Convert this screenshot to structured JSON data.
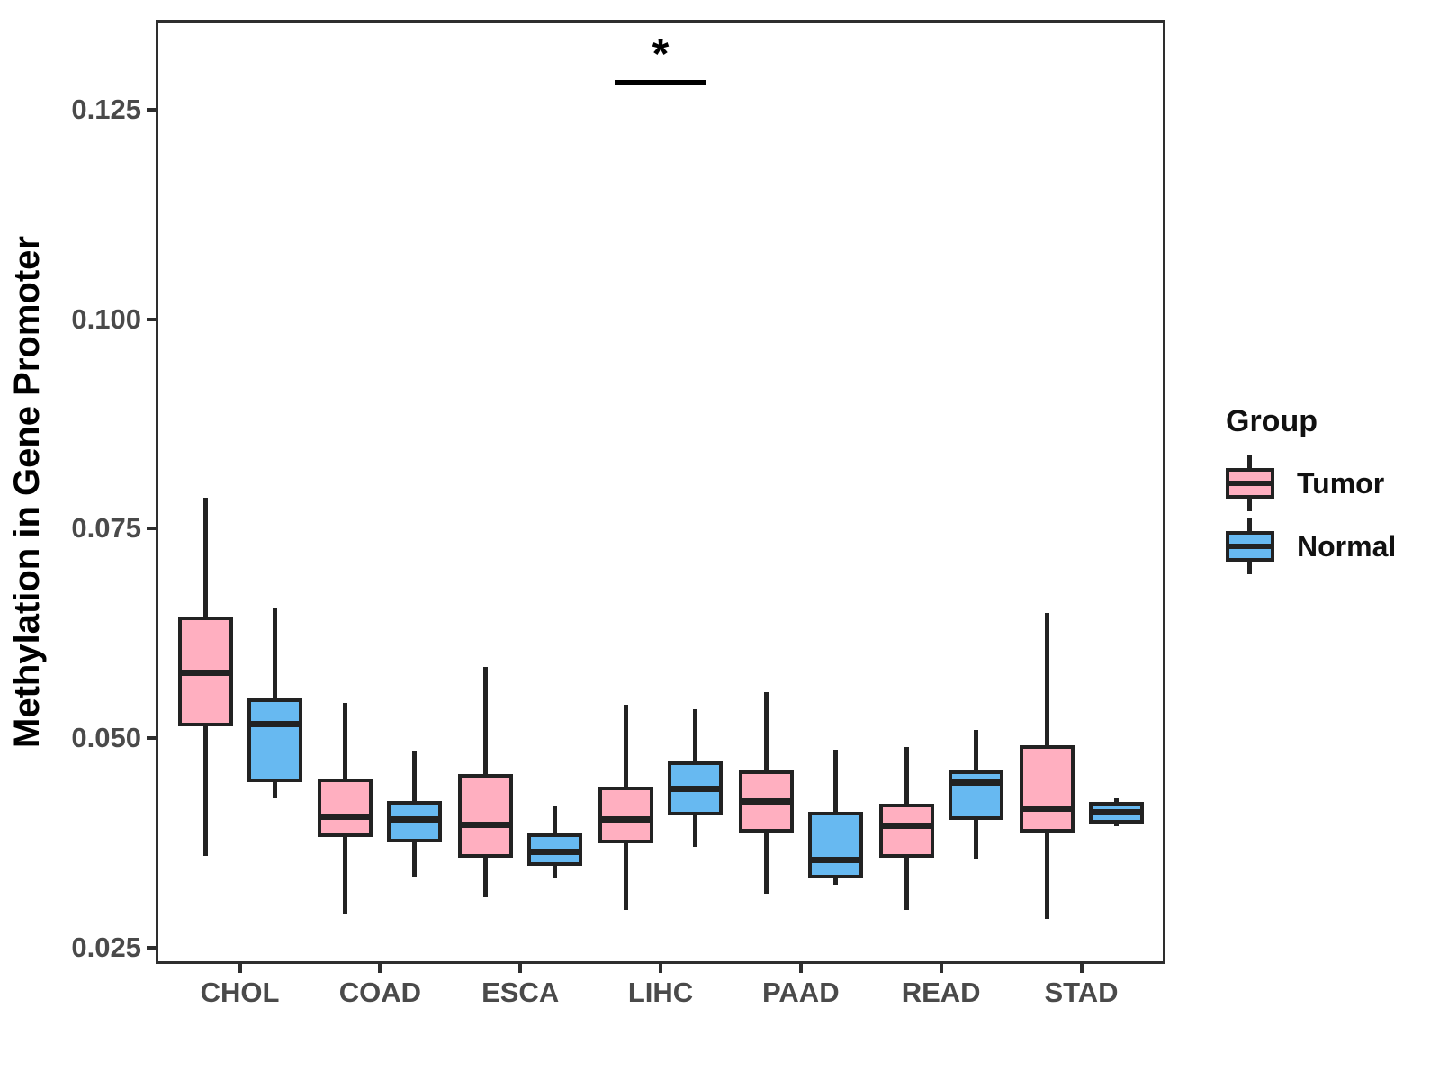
{
  "chart_data": {
    "type": "boxplot",
    "title": "",
    "xlabel": "",
    "ylabel": "Methylation in Gene Promoter",
    "legend_title": "Group",
    "legend_position": "right",
    "grid": false,
    "categories": [
      "CHOL",
      "COAD",
      "ESCA",
      "LIHC",
      "PAAD",
      "READ",
      "STAD"
    ],
    "y_ticks": [
      {
        "value": 0.025,
        "label": "0.025"
      },
      {
        "value": 0.05,
        "label": "0.050"
      },
      {
        "value": 0.075,
        "label": "0.075"
      },
      {
        "value": 0.1,
        "label": "0.100"
      },
      {
        "value": 0.125,
        "label": "0.125"
      }
    ],
    "ylim": [
      0.0231,
      0.1357
    ],
    "series": [
      {
        "name": "Tumor",
        "fill": "#FFAFC0",
        "boxes": [
          {
            "category": "CHOL",
            "low": 0.036,
            "q1": 0.0517,
            "median": 0.0578,
            "q3": 0.0643,
            "high": 0.0787
          },
          {
            "category": "COAD",
            "low": 0.029,
            "q1": 0.0385,
            "median": 0.0407,
            "q3": 0.045,
            "high": 0.0542
          },
          {
            "category": "ESCA",
            "low": 0.031,
            "q1": 0.036,
            "median": 0.0397,
            "q3": 0.0455,
            "high": 0.0585
          },
          {
            "category": "LIHC",
            "low": 0.0295,
            "q1": 0.0377,
            "median": 0.0403,
            "q3": 0.044,
            "high": 0.054
          },
          {
            "category": "PAAD",
            "low": 0.0315,
            "q1": 0.039,
            "median": 0.0425,
            "q3": 0.046,
            "high": 0.0555
          },
          {
            "category": "READ",
            "low": 0.0295,
            "q1": 0.036,
            "median": 0.0396,
            "q3": 0.042,
            "high": 0.049
          },
          {
            "category": "STAD",
            "low": 0.0285,
            "q1": 0.039,
            "median": 0.0416,
            "q3": 0.049,
            "high": 0.065
          }
        ]
      },
      {
        "name": "Normal",
        "fill": "#67B9F1",
        "boxes": [
          {
            "category": "CHOL",
            "low": 0.0428,
            "q1": 0.045,
            "median": 0.0517,
            "q3": 0.0545,
            "high": 0.0655
          },
          {
            "category": "COAD",
            "low": 0.0335,
            "q1": 0.0378,
            "median": 0.0403,
            "q3": 0.0423,
            "high": 0.0485
          },
          {
            "category": "ESCA",
            "low": 0.0333,
            "q1": 0.035,
            "median": 0.0365,
            "q3": 0.0385,
            "high": 0.042
          },
          {
            "category": "LIHC",
            "low": 0.037,
            "q1": 0.041,
            "median": 0.044,
            "q3": 0.047,
            "high": 0.0535
          },
          {
            "category": "PAAD",
            "low": 0.0325,
            "q1": 0.0335,
            "median": 0.0355,
            "q3": 0.041,
            "high": 0.0487
          },
          {
            "category": "READ",
            "low": 0.0357,
            "q1": 0.0405,
            "median": 0.0447,
            "q3": 0.046,
            "high": 0.051
          },
          {
            "category": "STAD",
            "low": 0.0395,
            "q1": 0.0401,
            "median": 0.0412,
            "q3": 0.0422,
            "high": 0.0428
          }
        ]
      }
    ],
    "annotations": [
      {
        "type": "significance-bracket",
        "label": "*",
        "category": "LIHC",
        "y": 0.1282,
        "between": [
          "Tumor",
          "Normal"
        ]
      }
    ]
  },
  "style": {
    "tumor_fill": "#FFAFC0",
    "normal_fill": "#67B9F1",
    "line_color": "#222222",
    "panel_border_color": "#2e2e2e",
    "tick_label_color": "#4a4a4a",
    "axis_title_color": "#000000",
    "background": "#ffffff"
  }
}
